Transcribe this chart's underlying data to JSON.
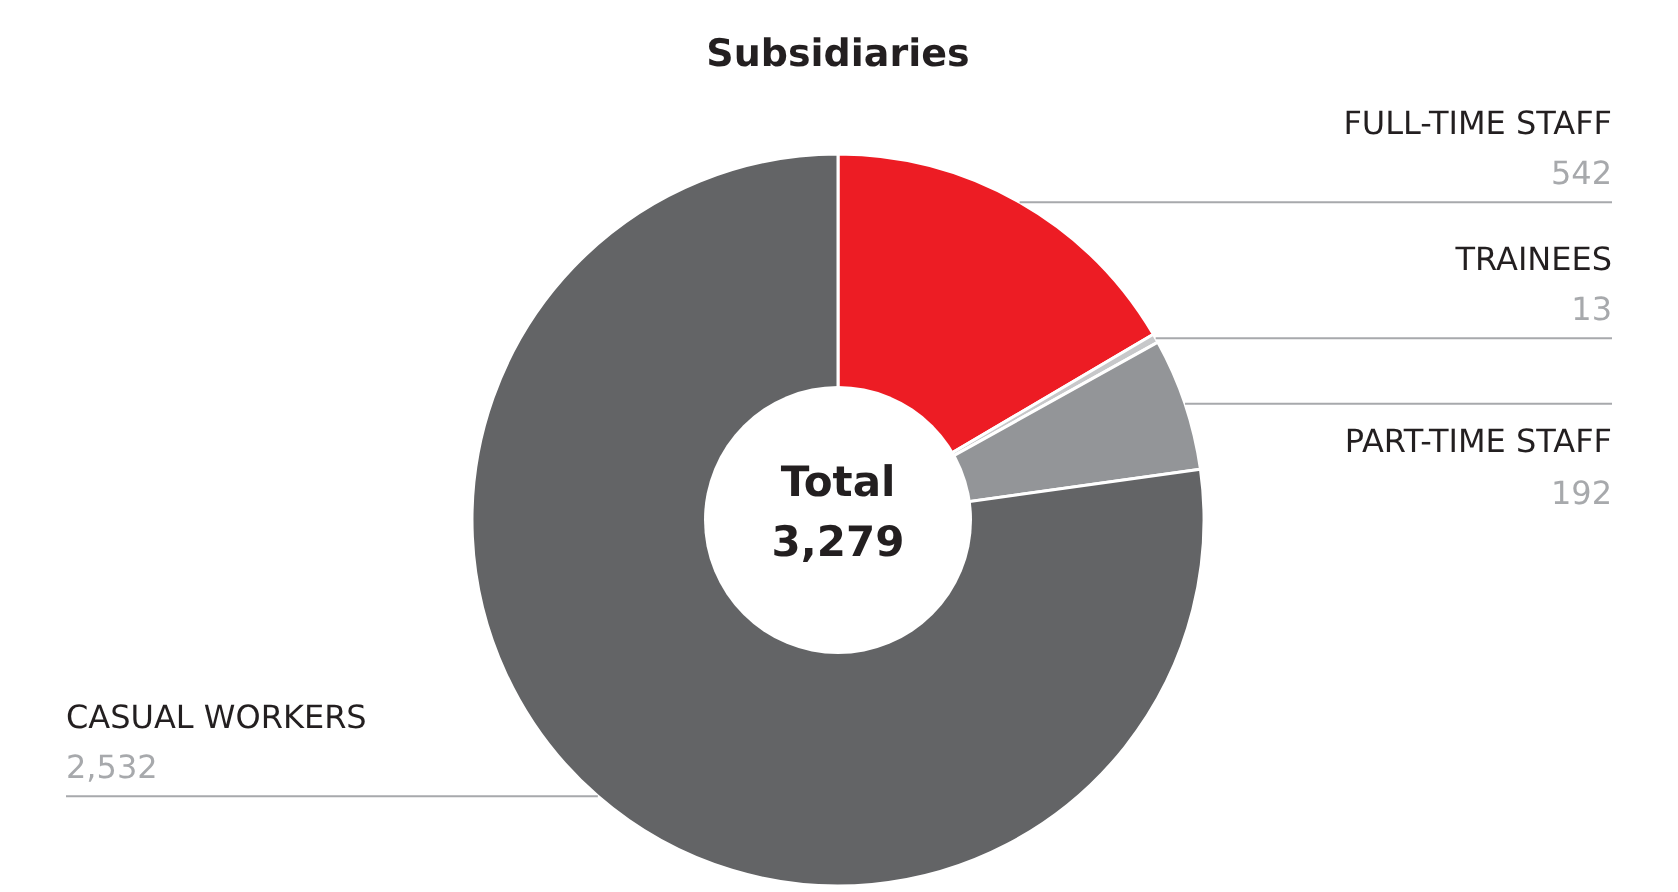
{
  "chart_data": {
    "type": "donut",
    "title": "Subsidiaries",
    "categories": [
      "FULL-TIME STAFF",
      "TRAINEES",
      "PART-TIME STAFF",
      "CASUAL WORKERS"
    ],
    "values": [
      542,
      13,
      192,
      2532
    ],
    "colors": [
      "#ed1c24",
      "#c7c8ca",
      "#939598",
      "#636466"
    ],
    "value_labels": [
      "542",
      "13",
      "192",
      "2,532"
    ],
    "annotations": [
      "Total",
      "3,279"
    ]
  }
}
